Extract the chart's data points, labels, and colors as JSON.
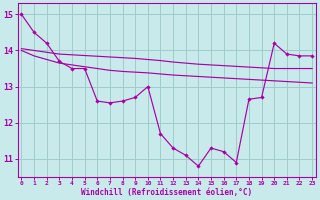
{
  "xlabel": "Windchill (Refroidissement éolien,°C)",
  "background_color": "#c8eaea",
  "grid_color": "#a0cccc",
  "line_color": "#aa00aa",
  "x_values": [
    0,
    1,
    2,
    3,
    4,
    5,
    6,
    7,
    8,
    9,
    10,
    11,
    12,
    13,
    14,
    15,
    16,
    17,
    18,
    19,
    20,
    21,
    22,
    23
  ],
  "line1_jagged": [
    15.0,
    14.5,
    14.2,
    13.7,
    13.5,
    13.5,
    12.6,
    12.55,
    12.6,
    12.7,
    13.0,
    11.7,
    11.3,
    11.1,
    10.8,
    11.3,
    11.2,
    10.9,
    12.65,
    12.7,
    14.2,
    13.9,
    13.85,
    13.85
  ],
  "line2_smooth": [
    14.0,
    13.85,
    13.75,
    13.65,
    13.6,
    13.55,
    13.5,
    13.45,
    13.42,
    13.4,
    13.38,
    13.35,
    13.32,
    13.3,
    13.28,
    13.26,
    13.24,
    13.22,
    13.2,
    13.18,
    13.16,
    13.14,
    13.12,
    13.1
  ],
  "line3_smooth": [
    14.05,
    14.0,
    13.95,
    13.9,
    13.88,
    13.86,
    13.84,
    13.82,
    13.8,
    13.78,
    13.75,
    13.72,
    13.68,
    13.65,
    13.62,
    13.6,
    13.58,
    13.56,
    13.54,
    13.52,
    13.5,
    13.5,
    13.5,
    13.5
  ],
  "ylim": [
    10.5,
    15.3
  ],
  "yticks": [
    11,
    12,
    13,
    14,
    15
  ],
  "xlim": [
    -0.3,
    23.3
  ]
}
